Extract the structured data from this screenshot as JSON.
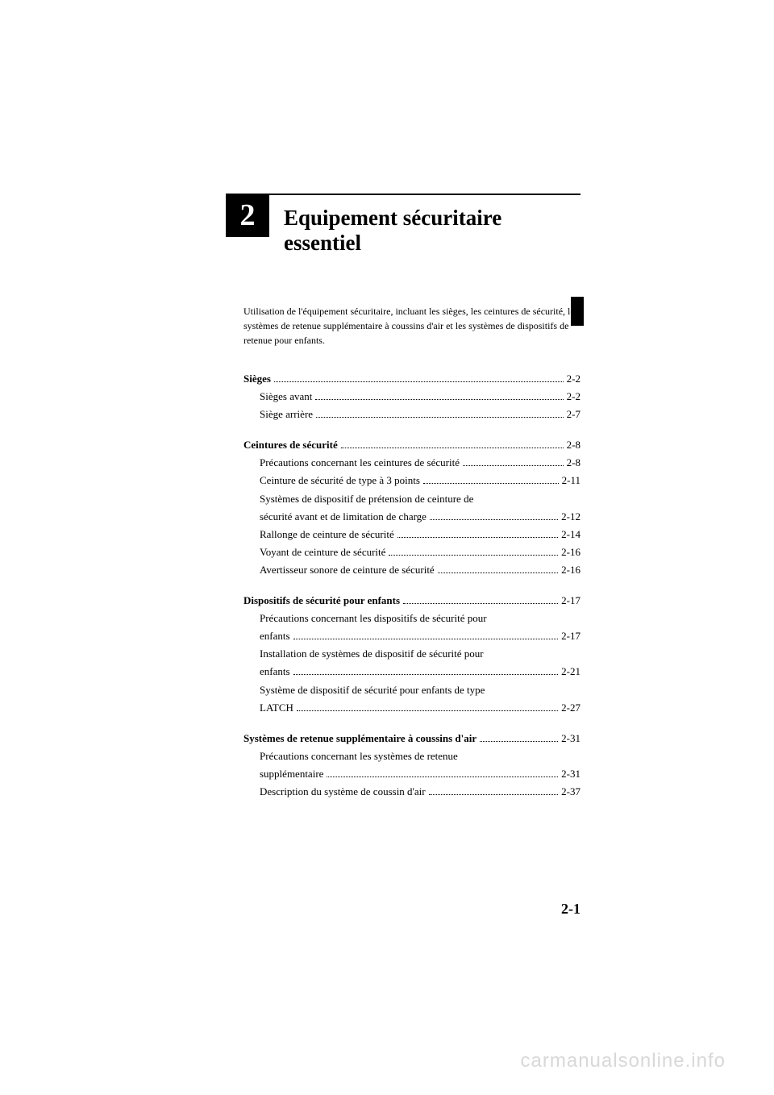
{
  "chapter_number": "2",
  "chapter_title": "Equipement sécuritaire essentiel",
  "intro_text": "Utilisation de l'équipement sécuritaire, incluant les sièges, les ceintures de sécurité, les systèmes de retenue supplémentaire à coussins d'air et les systèmes de dispositifs de retenue pour enfants.",
  "sections": [
    {
      "title": "Sièges",
      "page": "2-2",
      "items": [
        {
          "label": "Sièges avant",
          "page": "2-2"
        },
        {
          "label": "Siège arrière",
          "page": "2-7"
        }
      ]
    },
    {
      "title": "Ceintures de sécurité",
      "page": "2-8",
      "items": [
        {
          "label": "Précautions concernant les ceintures de sécurité",
          "page": "2-8"
        },
        {
          "label": "Ceinture de sécurité de type à 3 points",
          "page": "2-11"
        },
        {
          "label": "Systèmes de dispositif de prétension de ceinture de sécurité avant et de limitation de charge",
          "page": "2-12",
          "multiline": true
        },
        {
          "label": "Rallonge de ceinture de sécurité",
          "page": "2-14"
        },
        {
          "label": "Voyant de ceinture de sécurité",
          "page": "2-16"
        },
        {
          "label": "Avertisseur sonore de ceinture de sécurité",
          "page": "2-16"
        }
      ]
    },
    {
      "title": "Dispositifs de sécurité pour enfants",
      "page": "2-17",
      "items": [
        {
          "label": "Précautions concernant les dispositifs de sécurité pour enfants",
          "page": "2-17",
          "multiline": true
        },
        {
          "label": "Installation de systèmes de dispositif de sécurité pour enfants",
          "page": "2-21",
          "multiline": true
        },
        {
          "label": "Système de dispositif de sécurité pour enfants de type LATCH",
          "page": "2-27",
          "multiline": true
        }
      ]
    },
    {
      "title": "Systèmes de retenue supplémentaire à coussins d'air",
      "page": "2-31",
      "items": [
        {
          "label": "Précautions concernant les systèmes de retenue supplémentaire",
          "page": "2-31",
          "multiline": true
        },
        {
          "label": "Description du système de coussin d'air",
          "page": "2-37"
        }
      ]
    }
  ],
  "page_number": "2-1",
  "watermark": "carmanualsonline.info"
}
